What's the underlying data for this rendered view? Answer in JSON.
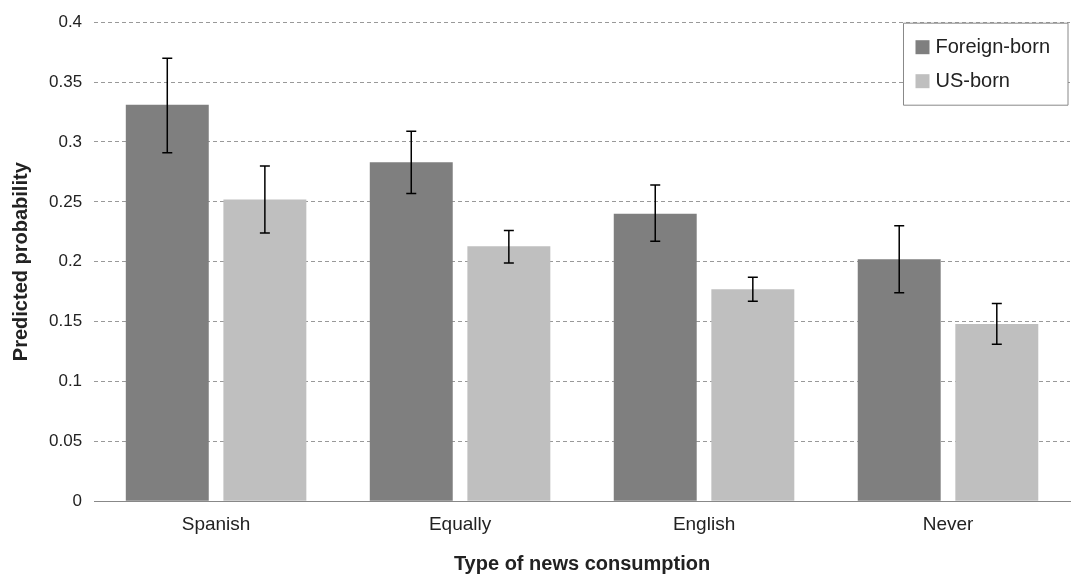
{
  "chart_data": {
    "type": "bar",
    "xlabel": "Type of news consumption",
    "ylabel": "Predicted probability",
    "categories": [
      "Spanish",
      "Equally",
      "English",
      "Never"
    ],
    "series": [
      {
        "name": "Foreign-born",
        "color": "#7f7f7f",
        "values": [
          0.331,
          0.283,
          0.24,
          0.202
        ],
        "errors": [
          [
            0.291,
            0.37
          ],
          [
            0.257,
            0.309
          ],
          [
            0.217,
            0.264
          ],
          [
            0.174,
            0.23
          ]
        ]
      },
      {
        "name": "US-born",
        "color": "#bfbfbf",
        "values": [
          0.252,
          0.213,
          0.177,
          0.148
        ],
        "errors": [
          [
            0.224,
            0.28
          ],
          [
            0.199,
            0.226
          ],
          [
            0.167,
            0.187
          ],
          [
            0.131,
            0.165
          ]
        ]
      }
    ],
    "ylim": [
      0,
      0.4
    ],
    "yticks": [
      0,
      0.05,
      0.1,
      0.15,
      0.2,
      0.25,
      0.3,
      0.35,
      0.4
    ],
    "grid": "y",
    "legend": "top right"
  }
}
